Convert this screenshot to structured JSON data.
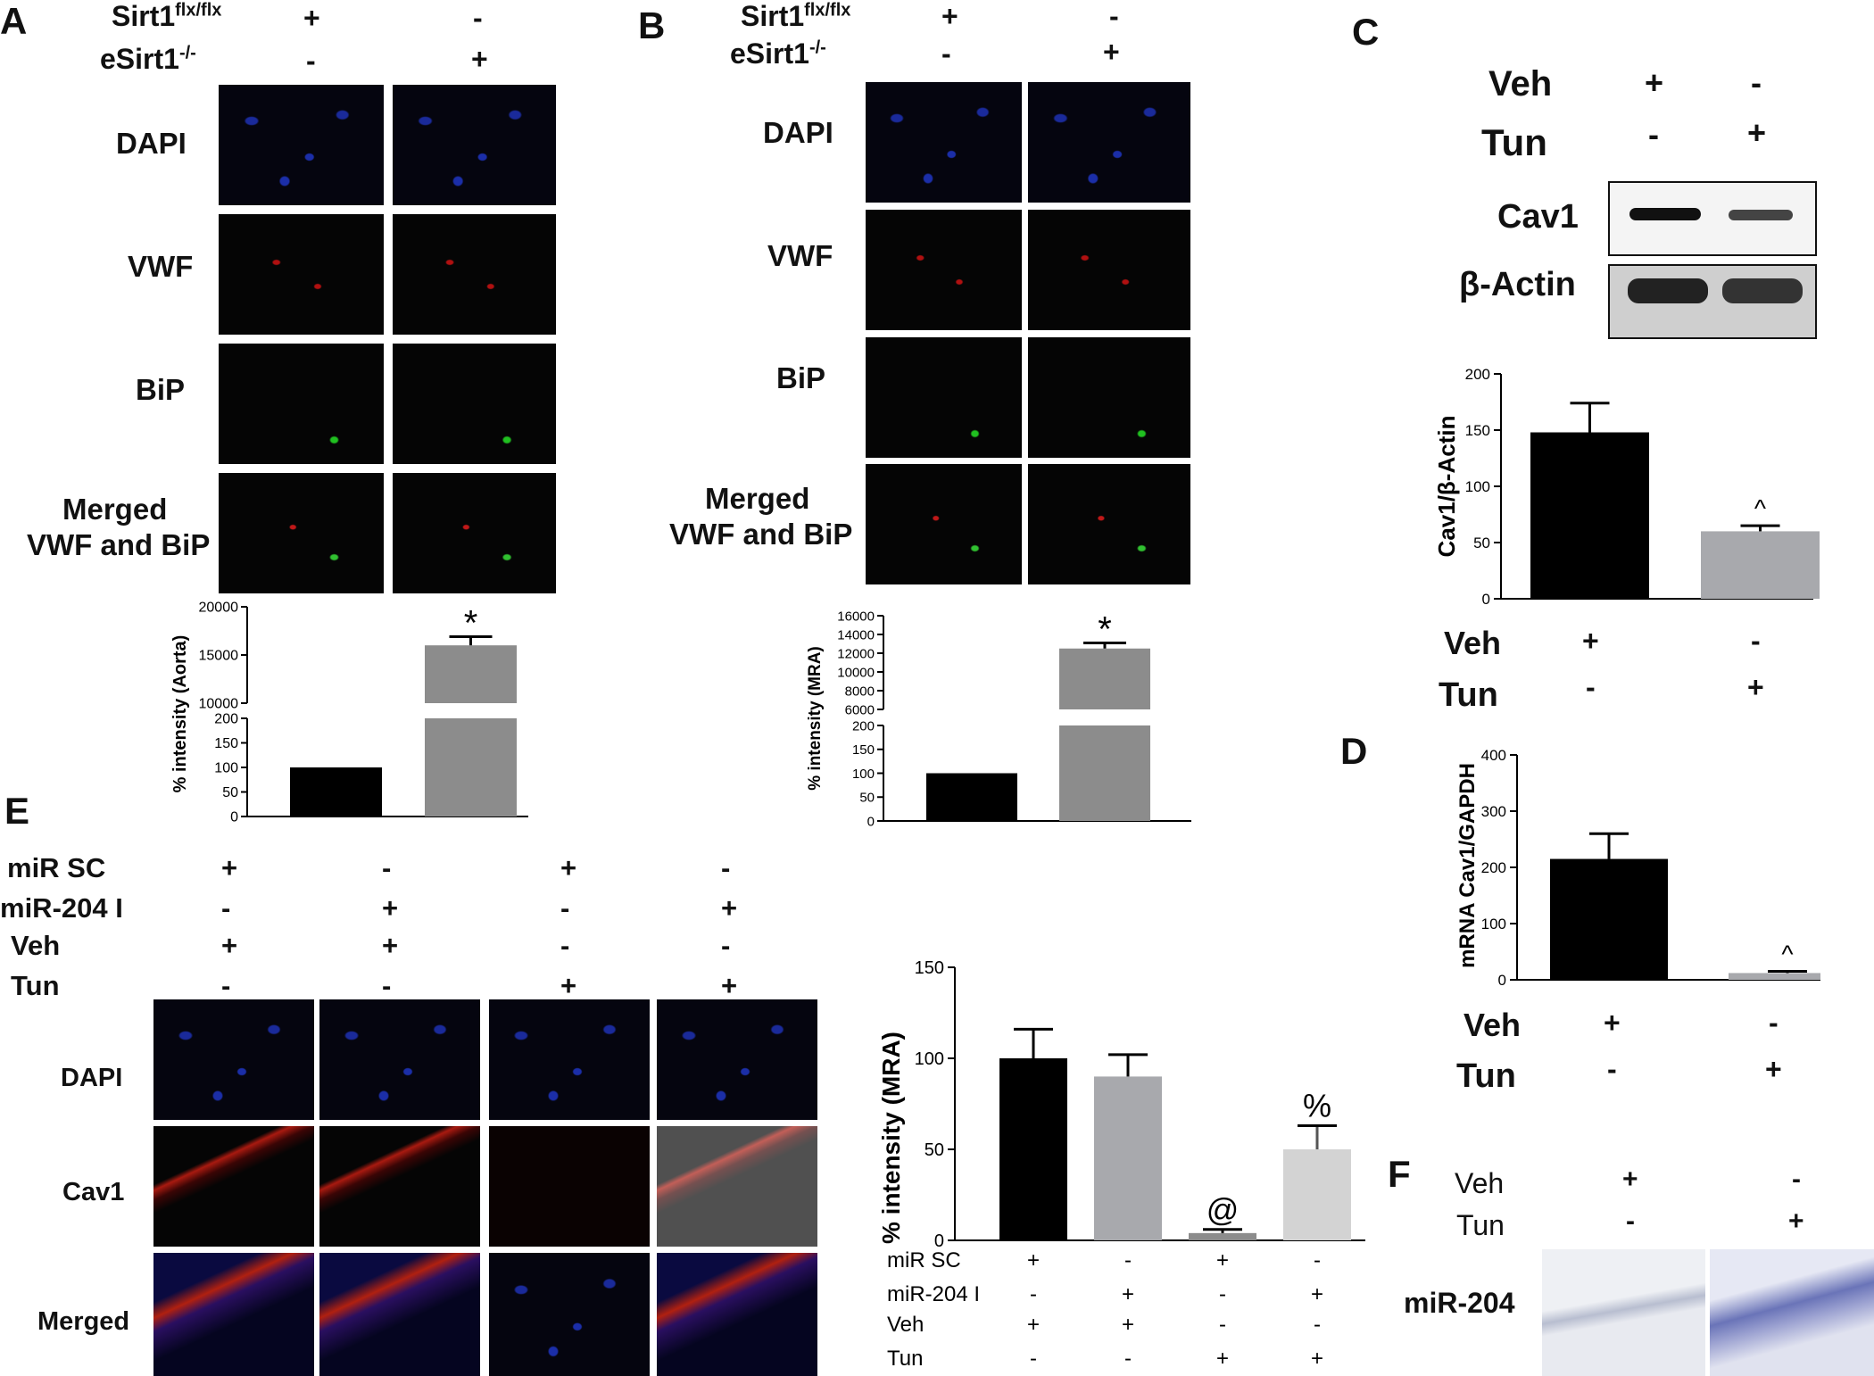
{
  "panels": {
    "A": {
      "label": "A",
      "cond_rows": [
        {
          "name": "Sirt1",
          "sup": "flx/flx",
          "values": [
            "+",
            "-"
          ]
        },
        {
          "name": "eSirt1",
          "sup": "-/-",
          "values": [
            "-",
            "+"
          ]
        }
      ],
      "rows": [
        "DAPI",
        "VWF",
        "BiP",
        "Merged",
        "VWF and BiP"
      ]
    },
    "B": {
      "label": "B",
      "cond_rows": [
        {
          "name": "Sirt1",
          "sup": "flx/flx",
          "values": [
            "+",
            "-"
          ]
        },
        {
          "name": "eSirt1",
          "sup": "-/-",
          "values": [
            "-",
            "+"
          ]
        }
      ],
      "rows": [
        "DAPI",
        "VWF",
        "BiP",
        "Merged",
        "VWF and BiP"
      ]
    },
    "C": {
      "label": "C",
      "veh": "Veh",
      "tun": "Tun",
      "veh_vals": [
        "+",
        "-"
      ],
      "tun_vals": [
        "-",
        "+"
      ],
      "blot_rows": [
        "Cav1",
        "β-Actin"
      ]
    },
    "D": {
      "label": "D",
      "veh": "Veh",
      "tun": "Tun",
      "veh_vals": [
        "+",
        "-"
      ],
      "tun_vals": [
        "-",
        "+"
      ]
    },
    "E": {
      "label": "E",
      "cond_rows": [
        {
          "name": "miR SC",
          "values": [
            "+",
            "-",
            "+",
            "-"
          ]
        },
        {
          "name": "miR-204 I",
          "values": [
            "-",
            "+",
            "-",
            "+"
          ]
        },
        {
          "name": "Veh",
          "values": [
            "+",
            "+",
            "-",
            "-"
          ]
        },
        {
          "name": "Tun",
          "values": [
            "-",
            "-",
            "+",
            "+"
          ]
        }
      ],
      "rows": [
        "DAPI",
        "Cav1",
        "Merged"
      ]
    },
    "F": {
      "label": "F",
      "veh": "Veh",
      "tun": "Tun",
      "veh_vals": [
        "+",
        "-"
      ],
      "tun_vals": [
        "-",
        "+"
      ],
      "row": "miR-204"
    }
  },
  "chart_data": [
    {
      "id": "A",
      "type": "bar",
      "ylabel": "% intensity (Aorta)",
      "values": [
        100,
        16000
      ],
      "errors": [
        0,
        900
      ],
      "colors": [
        "#000000",
        "#8c8c8c"
      ],
      "annotations": [
        "",
        "*"
      ],
      "axis_top": {
        "ylim": [
          10000,
          20000
        ],
        "ticks": [
          "20000",
          "15000",
          "10000"
        ]
      },
      "axis_bottom": {
        "ylim": [
          0,
          200
        ],
        "ticks": [
          "200",
          "150",
          "100",
          "50",
          "0"
        ]
      }
    },
    {
      "id": "B",
      "type": "bar",
      "ylabel": "% intensity (MRA)",
      "values": [
        100,
        12500
      ],
      "errors": [
        0,
        600
      ],
      "colors": [
        "#000000",
        "#8c8c8c"
      ],
      "annotations": [
        "",
        "*"
      ],
      "axis_top": {
        "ylim": [
          6000,
          16000
        ],
        "ticks": [
          "16000",
          "14000",
          "12000",
          "10000",
          "8000",
          "6000"
        ]
      },
      "axis_bottom": {
        "ylim": [
          0,
          200
        ],
        "ticks": [
          "200",
          "150",
          "100",
          "50",
          "0"
        ]
      }
    },
    {
      "id": "C",
      "type": "bar",
      "ylabel": "Cav1/β-Actin",
      "values": [
        148,
        60
      ],
      "errors": [
        26,
        5
      ],
      "colors": [
        "#000000",
        "#a8a9ad"
      ],
      "annotations": [
        "",
        "^"
      ],
      "ylim": [
        0,
        200
      ],
      "ticks": [
        "200",
        "150",
        "100",
        "50",
        "0"
      ]
    },
    {
      "id": "D",
      "type": "bar",
      "ylabel": "mRNA Cav1/GAPDH",
      "values": [
        215,
        12
      ],
      "errors": [
        45,
        3
      ],
      "colors": [
        "#000000",
        "#a8a9ad"
      ],
      "annotations": [
        "",
        "^"
      ],
      "ylim": [
        0,
        400
      ],
      "ticks": [
        "400",
        "300",
        "200",
        "100",
        "0"
      ]
    },
    {
      "id": "E",
      "type": "bar",
      "ylabel": "% intensity (MRA)",
      "values": [
        100,
        90,
        4,
        50
      ],
      "errors": [
        16,
        12,
        2,
        13
      ],
      "colors": [
        "#000000",
        "#a8a9ad",
        "#8c8c8c",
        "#d3d3d3"
      ],
      "annotations": [
        "",
        "",
        "@",
        "%"
      ],
      "ylim": [
        0,
        150
      ],
      "ticks": [
        "150",
        "100",
        "50",
        "0"
      ],
      "cond_rows": [
        {
          "name": "miR SC",
          "values": [
            "+",
            "-",
            "+",
            "-"
          ]
        },
        {
          "name": "miR-204 I",
          "values": [
            "-",
            "+",
            "-",
            "+"
          ]
        },
        {
          "name": "Veh",
          "values": [
            "+",
            "+",
            "-",
            "-"
          ]
        },
        {
          "name": "Tun",
          "values": [
            "-",
            "-",
            "+",
            "+"
          ]
        }
      ]
    }
  ]
}
